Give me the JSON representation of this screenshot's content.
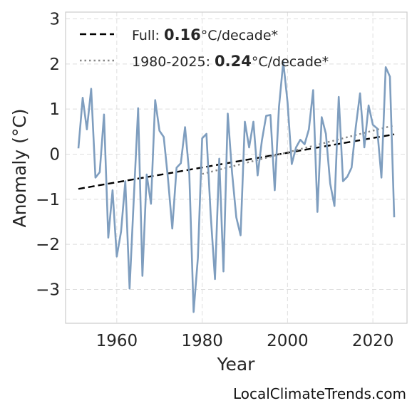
{
  "chart_data": {
    "type": "line",
    "xlabel": "Year",
    "ylabel": "Anomaly (°C)",
    "xlim": [
      1948,
      2028
    ],
    "ylim": [
      -3.75,
      3.15
    ],
    "xticks": [
      1960,
      1980,
      2000,
      2020
    ],
    "yticks": [
      -3,
      -2,
      -1,
      0,
      1,
      2,
      3
    ],
    "grid": true,
    "legend_position": "top-left",
    "colors": {
      "series": "#7f9ebf",
      "full_trend": "#000000",
      "recent_trend": "#888888"
    },
    "x": [
      1951,
      1952,
      1953,
      1954,
      1955,
      1956,
      1957,
      1958,
      1959,
      1960,
      1961,
      1962,
      1963,
      1964,
      1965,
      1966,
      1967,
      1968,
      1969,
      1970,
      1971,
      1972,
      1973,
      1974,
      1975,
      1976,
      1977,
      1978,
      1979,
      1980,
      1981,
      1982,
      1983,
      1984,
      1985,
      1986,
      1987,
      1988,
      1989,
      1990,
      1991,
      1992,
      1993,
      1994,
      1995,
      1996,
      1997,
      1998,
      1999,
      2000,
      2001,
      2002,
      2003,
      2004,
      2005,
      2006,
      2007,
      2008,
      2009,
      2010,
      2011,
      2012,
      2013,
      2014,
      2015,
      2016,
      2017,
      2018,
      2019,
      2020,
      2021,
      2022,
      2023,
      2024,
      2025
    ],
    "series": [
      {
        "values": [
          0.13,
          1.25,
          0.55,
          1.45,
          -0.52,
          -0.4,
          0.88,
          -1.85,
          -0.8,
          -2.27,
          -1.72,
          -0.6,
          -2.98,
          -0.95,
          1.02,
          -2.7,
          -0.45,
          -1.1,
          1.2,
          0.52,
          0.38,
          -0.55,
          -1.65,
          -0.3,
          -0.2,
          0.6,
          -0.45,
          -3.5,
          -2.3,
          0.35,
          0.45,
          -1.35,
          -2.77,
          -0.1,
          -2.6,
          0.9,
          -0.4,
          -1.4,
          -1.8,
          0.72,
          0.15,
          0.72,
          -0.47,
          0.3,
          0.85,
          0.87,
          -0.8,
          1.05,
          2.05,
          1.15,
          -0.22,
          0.15,
          0.32,
          0.22,
          0.55,
          1.42,
          -1.28,
          0.82,
          0.45,
          -0.65,
          -1.15,
          1.27,
          -0.6,
          -0.5,
          -0.3,
          0.6,
          1.35,
          0.15,
          1.08,
          0.65,
          0.57,
          -0.52,
          1.93,
          1.72,
          -1.4
        ]
      }
    ],
    "trends": [
      {
        "name": "Full",
        "rate": "0.16",
        "unit": "°C/decade*",
        "style": "dashed",
        "x": [
          1951,
          2025
        ],
        "y": [
          -0.77,
          0.44
        ]
      },
      {
        "name": "1980-2025",
        "rate": "0.24",
        "unit": "°C/decade*",
        "style": "dotted",
        "x": [
          1980,
          2025
        ],
        "y": [
          -0.44,
          0.64
        ]
      }
    ]
  },
  "watermark": "LocalClimateTrends.com"
}
